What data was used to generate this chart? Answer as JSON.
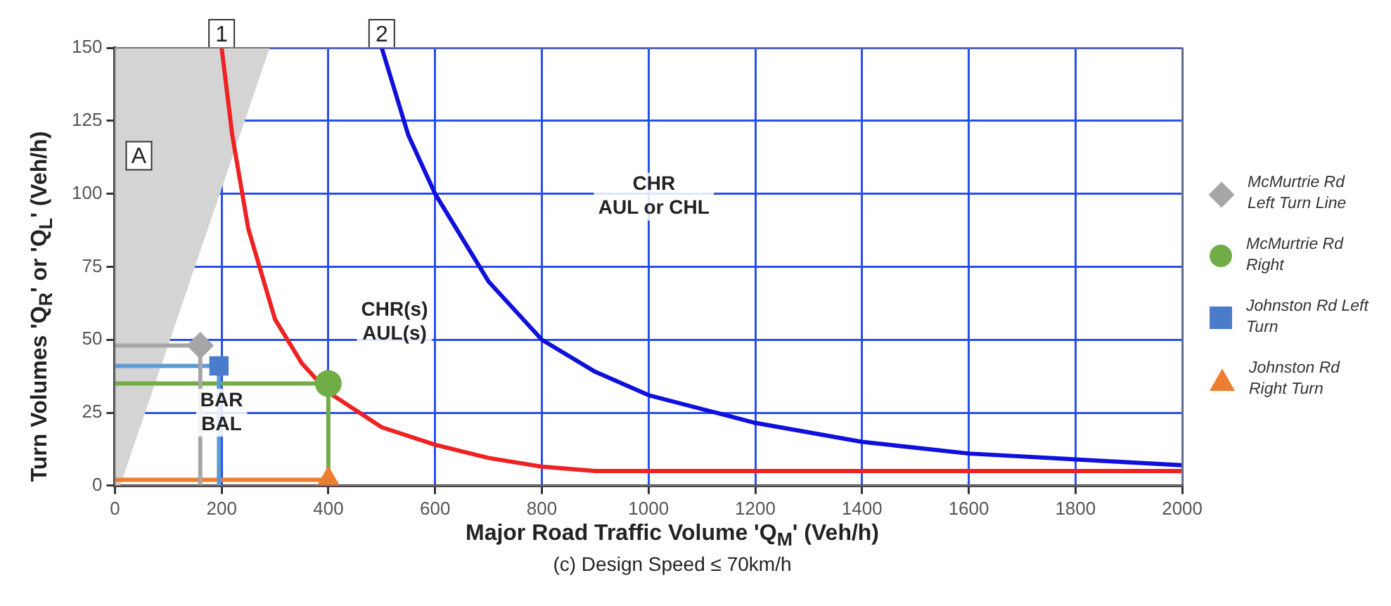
{
  "chart_data": {
    "type": "line",
    "xlabel": "Major Road Traffic Volume 'Q$_{M}$' (Veh/h)",
    "ylabel": "Turn Volumes 'Q$_{R}$' or 'Q$_{L}$' (Veh/h)",
    "xlim": [
      0,
      2000
    ],
    "xticks": [
      0,
      200,
      400,
      600,
      800,
      1000,
      1200,
      1400,
      1600,
      1800,
      2000
    ],
    "ylim": [
      0,
      150
    ],
    "yticks": [
      0,
      25,
      50,
      75,
      100,
      125,
      150
    ],
    "grid": true,
    "legend": "right",
    "line_style": "solid",
    "series": [
      {
        "type": "area",
        "color": "#d4d4d4",
        "x": [
          0,
          10,
          290
        ],
        "values": [
          0,
          0,
          150
        ]
      },
      {
        "color": "#ee2222",
        "marker": "none",
        "x": [
          200,
          220,
          250,
          300,
          350,
          400,
          500,
          600,
          700,
          800,
          900,
          1000,
          1200,
          1500,
          2000
        ],
        "values": [
          150,
          120,
          88,
          57,
          42,
          32,
          20,
          14,
          9.5,
          6.5,
          5,
          5,
          5,
          5,
          5
        ]
      },
      {
        "color": "#1010dd",
        "marker": "none",
        "x": [
          500,
          550,
          600,
          700,
          800,
          900,
          1000,
          1200,
          1400,
          1600,
          1800,
          2000
        ],
        "values": [
          150,
          120,
          100,
          70,
          50,
          39,
          31,
          21.5,
          15,
          11,
          9,
          7
        ]
      },
      {
        "type": "line",
        "color": "#a6a6a6",
        "marker": "none",
        "x": [
          0,
          160,
          160
        ],
        "values": [
          48,
          48,
          0
        ]
      },
      {
        "type": "line",
        "color": "#5b9bd5",
        "marker": "none",
        "x": [
          0,
          195,
          195
        ],
        "values": [
          41,
          41,
          0
        ]
      },
      {
        "type": "line",
        "color": "#70ad47",
        "marker": "none",
        "x": [
          0,
          400,
          400
        ],
        "values": [
          35,
          35,
          0
        ]
      },
      {
        "type": "line",
        "color": "#ed7d31",
        "marker": "none",
        "x": [
          0,
          400
        ],
        "values": [
          2,
          2
        ]
      },
      {
        "type": "scatter",
        "name": "McMurtrie Rd Left Turn Line",
        "color": "#a6a6a6",
        "marker": "diamond",
        "x": [
          160
        ],
        "values": [
          48
        ]
      },
      {
        "type": "scatter",
        "name": "McMurtrie Rd Right",
        "color": "#70ad47",
        "marker": "circle",
        "x": [
          400
        ],
        "values": [
          35
        ]
      },
      {
        "type": "scatter",
        "name": "Johnston Rd Left Turn",
        "color": "#4a7cc9",
        "marker": "square",
        "x": [
          195
        ],
        "values": [
          41
        ]
      },
      {
        "type": "scatter",
        "name": "Johnston Rd Right Turn",
        "color": "#ed7d31",
        "marker": "triangle",
        "x": [
          400
        ],
        "values": [
          2
        ]
      }
    ],
    "annotations": [
      {
        "text": "1",
        "x": 200,
        "y": 150
      },
      {
        "text": "2",
        "x": 500,
        "y": 150
      },
      {
        "text": "A",
        "x": 45,
        "y": 113
      },
      {
        "text": "BAR\nBAL",
        "x": 200,
        "y": 25
      },
      "CHR(s)\nAUL(s)",
      "CHR\nAUL or CHL",
      "(c) Design Speed ≤ 70km/h"
    ]
  }
}
